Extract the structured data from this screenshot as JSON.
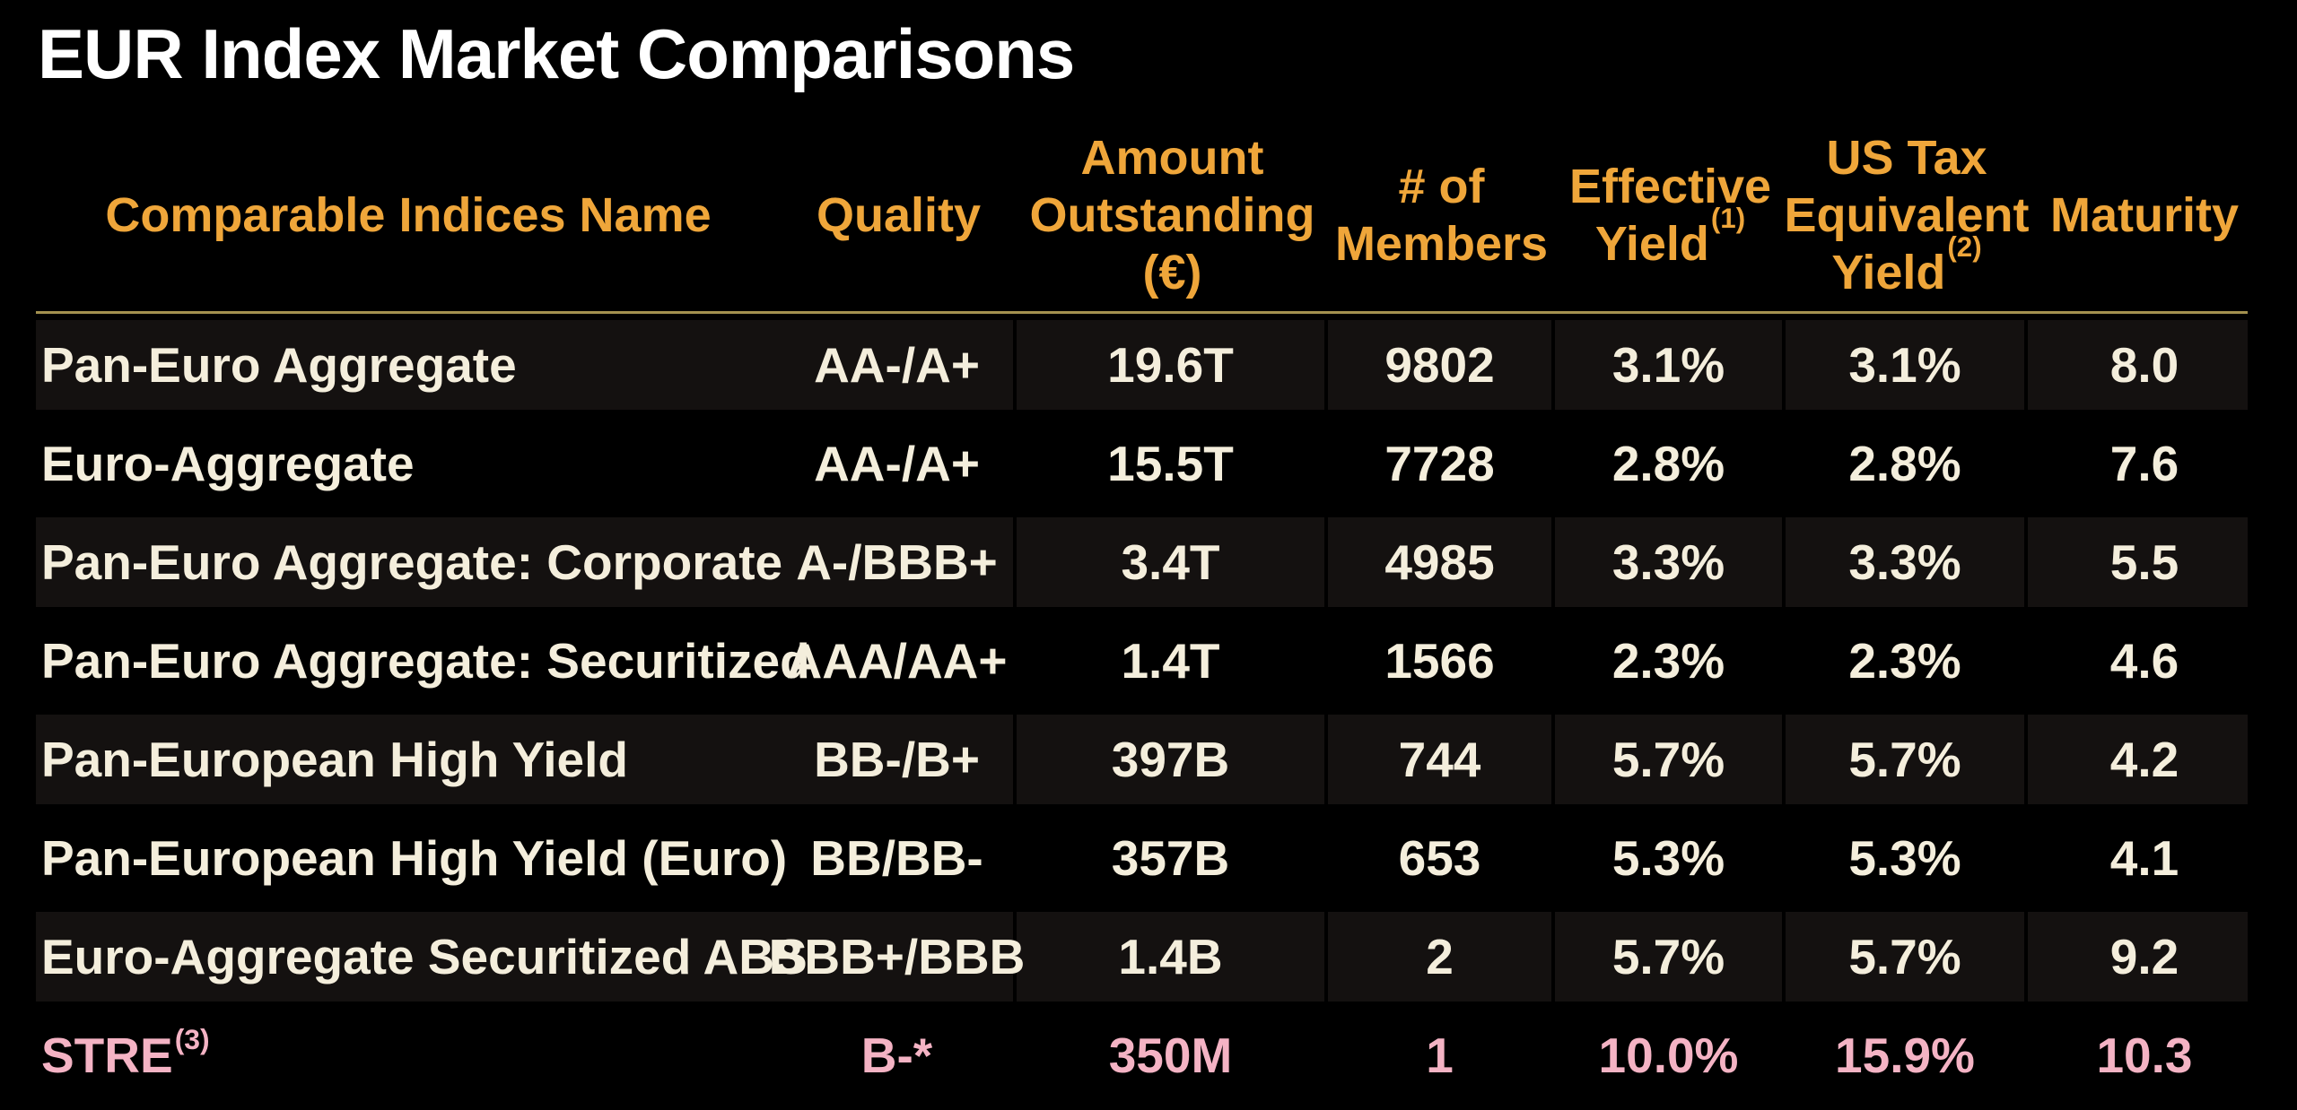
{
  "title": "EUR Index Market Comparisons",
  "colors": {
    "background": "#000000",
    "title_text": "#FFFFFF",
    "header_text": "#EFA63A",
    "body_text": "#F4EEDC",
    "highlight_row_text": "#F4B3C4",
    "row_stripe": "#141110",
    "divider": "#A3914F"
  },
  "table": {
    "columns": [
      {
        "key": "name",
        "header_lines": [
          "Comparable Indices Name"
        ],
        "header_sup": "",
        "align": "left"
      },
      {
        "key": "quality",
        "header_lines": [
          "Quality"
        ],
        "header_sup": "",
        "align": "center"
      },
      {
        "key": "amount_outstanding",
        "header_lines": [
          "Amount",
          "Outstanding",
          "(€)"
        ],
        "header_sup": "",
        "align": "center"
      },
      {
        "key": "members",
        "header_lines": [
          "# of",
          "Members"
        ],
        "header_sup": "",
        "align": "center"
      },
      {
        "key": "effective_yield",
        "header_lines": [
          "Effective",
          "Yield"
        ],
        "header_sup": "(1)",
        "align": "center"
      },
      {
        "key": "us_tax_equivalent_yield",
        "header_lines": [
          "US Tax",
          "Equivalent",
          "Yield"
        ],
        "header_sup": "(2)",
        "align": "center"
      },
      {
        "key": "maturity",
        "header_lines": [
          "Maturity"
        ],
        "header_sup": "",
        "align": "center"
      }
    ],
    "rows": [
      {
        "name": "Pan-Euro Aggregate",
        "name_sup": "",
        "quality": "AA-/A+",
        "amount_outstanding": "19.6T",
        "members": "9802",
        "effective_yield": "3.1%",
        "us_tax_equivalent_yield": "3.1%",
        "maturity": "8.0",
        "highlight": false
      },
      {
        "name": "Euro-Aggregate",
        "name_sup": "",
        "quality": "AA-/A+",
        "amount_outstanding": "15.5T",
        "members": "7728",
        "effective_yield": "2.8%",
        "us_tax_equivalent_yield": "2.8%",
        "maturity": "7.6",
        "highlight": false
      },
      {
        "name": "Pan-Euro Aggregate: Corporate",
        "name_sup": "",
        "quality": "A-/BBB+",
        "amount_outstanding": "3.4T",
        "members": "4985",
        "effective_yield": "3.3%",
        "us_tax_equivalent_yield": "3.3%",
        "maturity": "5.5",
        "highlight": false
      },
      {
        "name": "Pan-Euro Aggregate: Securitized",
        "name_sup": "",
        "quality": "AAA/AA+",
        "amount_outstanding": "1.4T",
        "members": "1566",
        "effective_yield": "2.3%",
        "us_tax_equivalent_yield": "2.3%",
        "maturity": "4.6",
        "highlight": false
      },
      {
        "name": "Pan-European High Yield",
        "name_sup": "",
        "quality": "BB-/B+",
        "amount_outstanding": "397B",
        "members": "744",
        "effective_yield": "5.7%",
        "us_tax_equivalent_yield": "5.7%",
        "maturity": "4.2",
        "highlight": false
      },
      {
        "name": "Pan-European High Yield (Euro)",
        "name_sup": "",
        "quality": "BB/BB-",
        "amount_outstanding": "357B",
        "members": "653",
        "effective_yield": "5.3%",
        "us_tax_equivalent_yield": "5.3%",
        "maturity": "4.1",
        "highlight": false
      },
      {
        "name": "Euro-Aggregate Securitized ABS",
        "name_sup": "",
        "quality": "BBB+/BBB",
        "amount_outstanding": "1.4B",
        "members": "2",
        "effective_yield": "5.7%",
        "us_tax_equivalent_yield": "5.7%",
        "maturity": "9.2",
        "highlight": false
      },
      {
        "name": "STRE",
        "name_sup": "(3)",
        "quality": "B-*",
        "amount_outstanding": "350M",
        "members": "1",
        "effective_yield": "10.0%",
        "us_tax_equivalent_yield": "15.9%",
        "maturity": "10.3",
        "highlight": true
      }
    ]
  }
}
